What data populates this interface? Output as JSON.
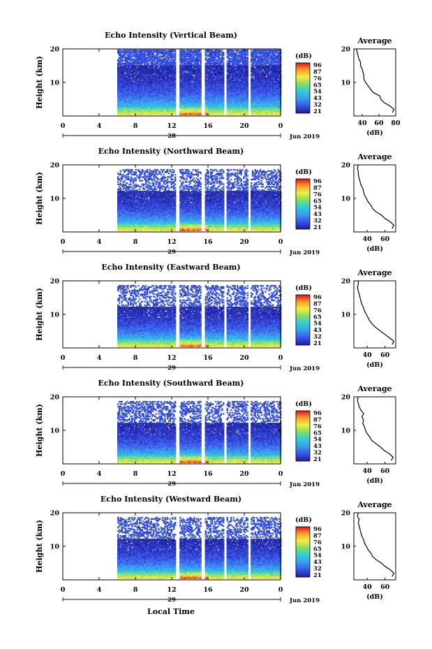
{
  "figure": {
    "xlabel": "Local Time",
    "date_label": "Jun 2019"
  },
  "chart_data": [
    {
      "type": "heatmap",
      "title": "Echo Intensity (Vertical Beam)",
      "ylabel": "Height (km)",
      "xlim": [
        0,
        24
      ],
      "ylim": [
        0,
        20
      ],
      "x_ticks": [
        "0",
        "4",
        "8",
        "12",
        "16",
        "20",
        "0"
      ],
      "y_ticks": [
        "10",
        "20"
      ],
      "day_label": "28",
      "colorbar": {
        "unit": "(dB)",
        "ticks": [
          "96",
          "87",
          "76",
          "65",
          "54",
          "43",
          "32",
          "21"
        ]
      },
      "data_start_hour": 6.0,
      "gaps_hours": [
        [
          12.5,
          12.9
        ],
        [
          15.3,
          15.7
        ],
        [
          17.8,
          18.1
        ],
        [
          20.4,
          20.7
        ]
      ],
      "profile": {
        "title": "Average",
        "xlabel": "(dB)",
        "x_ticks": [
          "40",
          "60",
          "80"
        ],
        "xlim": [
          30,
          80
        ],
        "height_km": [
          1,
          2,
          3,
          4,
          5,
          6,
          7,
          8,
          9,
          10,
          11,
          12,
          13,
          14,
          15,
          16,
          17,
          18,
          19,
          20
        ],
        "mean_db": [
          76,
          78,
          73,
          66,
          62,
          61,
          53,
          50,
          47,
          44,
          42,
          42,
          41,
          40,
          38,
          38,
          36,
          35,
          34,
          33
        ]
      }
    },
    {
      "type": "heatmap",
      "title": "Echo Intensity (Northward Beam)",
      "ylabel": "Height (km)",
      "xlim": [
        0,
        24
      ],
      "ylim": [
        0,
        20
      ],
      "x_ticks": [
        "0",
        "4",
        "8",
        "12",
        "16",
        "20",
        "0"
      ],
      "y_ticks": [
        "10",
        "20"
      ],
      "day_label": "29",
      "colorbar": {
        "unit": "(dB)",
        "ticks": [
          "96",
          "87",
          "76",
          "65",
          "54",
          "43",
          "32",
          "21"
        ]
      },
      "data_start_hour": 6.0,
      "gaps_hours": [
        [
          12.5,
          12.9
        ],
        [
          15.3,
          15.7
        ],
        [
          17.8,
          18.1
        ],
        [
          20.4,
          20.7
        ]
      ],
      "profile": {
        "title": "Average",
        "xlabel": "(dB)",
        "x_ticks": [
          "40",
          "60"
        ],
        "xlim": [
          25,
          72
        ],
        "height_km": [
          1,
          2,
          3,
          4,
          5,
          6,
          7,
          8,
          9,
          10,
          11,
          12,
          13,
          14,
          15,
          16,
          17,
          18,
          19,
          20
        ],
        "mean_db": [
          68,
          70,
          66,
          60,
          56,
          50,
          46,
          44,
          41,
          39,
          37,
          36,
          35,
          33,
          32,
          31,
          30,
          30,
          29,
          30
        ]
      }
    },
    {
      "type": "heatmap",
      "title": "Echo Intensity (Eastward Beam)",
      "ylabel": "Height (km)",
      "xlim": [
        0,
        24
      ],
      "ylim": [
        0,
        20
      ],
      "x_ticks": [
        "0",
        "4",
        "8",
        "12",
        "16",
        "20",
        "0"
      ],
      "y_ticks": [
        "10",
        "20"
      ],
      "day_label": "29",
      "colorbar": {
        "unit": "(dB)",
        "ticks": [
          "96",
          "87",
          "76",
          "65",
          "54",
          "43",
          "32",
          "21"
        ]
      },
      "data_start_hour": 6.0,
      "gaps_hours": [
        [
          12.5,
          12.9
        ],
        [
          15.3,
          15.7
        ],
        [
          17.8,
          18.1
        ],
        [
          20.4,
          20.7
        ]
      ],
      "profile": {
        "title": "Average",
        "xlabel": "(dB)",
        "x_ticks": [
          "40",
          "60"
        ],
        "xlim": [
          25,
          72
        ],
        "height_km": [
          1,
          2,
          3,
          4,
          5,
          6,
          7,
          8,
          9,
          10,
          11,
          12,
          13,
          14,
          15,
          16,
          17,
          18,
          19,
          20
        ],
        "mean_db": [
          68,
          70,
          65,
          60,
          55,
          50,
          46,
          43,
          41,
          39,
          37,
          36,
          34,
          33,
          32,
          31,
          30,
          29,
          30,
          30
        ]
      }
    },
    {
      "type": "heatmap",
      "title": "Echo Intensity (Southward Beam)",
      "ylabel": "Height (km)",
      "xlim": [
        0,
        24
      ],
      "ylim": [
        0,
        20
      ],
      "x_ticks": [
        "0",
        "4",
        "8",
        "12",
        "16",
        "20",
        "0"
      ],
      "y_ticks": [
        "10",
        "20"
      ],
      "day_label": "29",
      "colorbar": {
        "unit": "(dB)",
        "ticks": [
          "96",
          "87",
          "76",
          "65",
          "54",
          "43",
          "32",
          "21"
        ]
      },
      "data_start_hour": 6.0,
      "gaps_hours": [
        [
          12.5,
          12.9
        ],
        [
          15.3,
          15.7
        ],
        [
          17.8,
          18.1
        ],
        [
          20.4,
          20.7
        ]
      ],
      "profile": {
        "title": "Average",
        "xlabel": "(dB)",
        "x_ticks": [
          "40",
          "60"
        ],
        "xlim": [
          25,
          72
        ],
        "height_km": [
          1,
          2,
          3,
          4,
          5,
          6,
          7,
          8,
          9,
          10,
          11,
          12,
          13,
          14,
          15,
          16,
          17,
          18,
          19,
          20
        ],
        "mean_db": [
          67,
          69,
          65,
          59,
          55,
          50,
          45,
          43,
          40,
          38,
          37,
          35,
          36,
          34,
          36,
          33,
          31,
          30,
          29,
          30
        ]
      }
    },
    {
      "type": "heatmap",
      "title": "Echo Intensity (Westward Beam)",
      "ylabel": "Height (km)",
      "xlim": [
        0,
        24
      ],
      "ylim": [
        0,
        20
      ],
      "x_ticks": [
        "0",
        "4",
        "8",
        "12",
        "16",
        "20",
        "0"
      ],
      "y_ticks": [
        "10",
        "20"
      ],
      "day_label": "29",
      "colorbar": {
        "unit": "(dB)",
        "ticks": [
          "96",
          "87",
          "76",
          "65",
          "54",
          "43",
          "32",
          "21"
        ]
      },
      "data_start_hour": 6.0,
      "gaps_hours": [
        [
          12.5,
          12.9
        ],
        [
          15.3,
          15.7
        ],
        [
          17.8,
          18.1
        ],
        [
          20.4,
          20.7
        ]
      ],
      "profile": {
        "title": "Average",
        "xlabel": "(dB)",
        "x_ticks": [
          "40",
          "60"
        ],
        "xlim": [
          25,
          72
        ],
        "height_km": [
          1,
          2,
          3,
          4,
          5,
          6,
          7,
          8,
          9,
          10,
          11,
          12,
          13,
          14,
          15,
          16,
          17,
          18,
          19,
          20
        ],
        "mean_db": [
          68,
          70,
          66,
          60,
          56,
          50,
          46,
          44,
          41,
          39,
          37,
          36,
          34,
          33,
          32,
          31,
          30,
          31,
          29,
          30
        ]
      }
    }
  ]
}
